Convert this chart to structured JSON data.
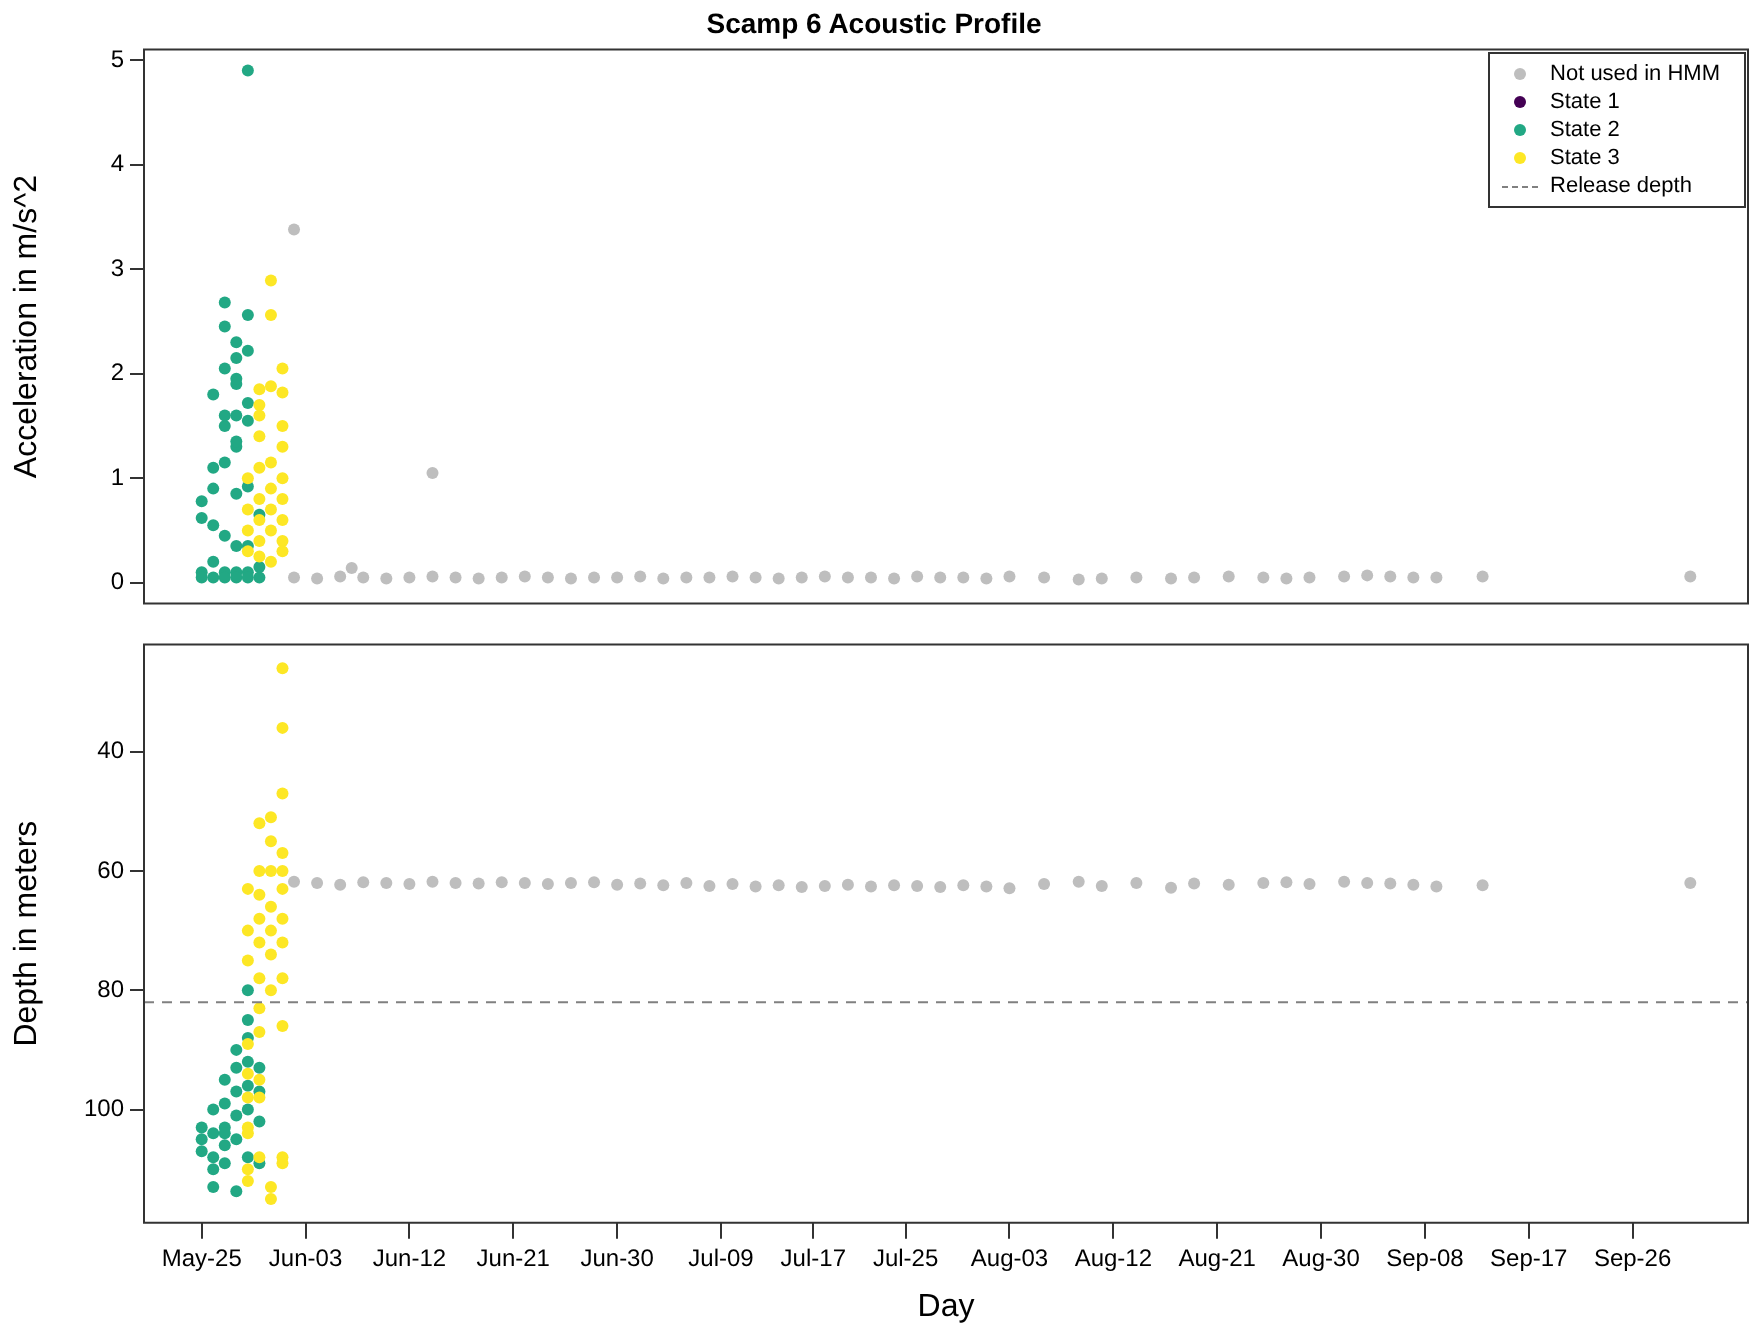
{
  "chart_data": [
    {
      "type": "scatter",
      "title": "Scamp 6 Acoustic Profile",
      "ylabel": "Acceleration in m/s^2",
      "marker": "circle",
      "legend": "top right",
      "tick_labels": "y",
      "xlim": [
        "--05-20",
        "--10-06"
      ],
      "ylim": [
        -0.2,
        5.1
      ],
      "yticks": [
        0,
        1,
        2,
        3,
        4,
        5
      ],
      "series": [
        {
          "name": "Not used in HMM",
          "color": "#bebebe",
          "x": [
            "--06-02",
            "--06-04",
            "--06-06",
            "--06-08",
            "--06-10",
            "--06-12",
            "--06-14",
            "--06-16",
            "--06-18",
            "--06-20",
            "--06-22",
            "--06-24",
            "--06-26",
            "--06-28",
            "--06-30",
            "--07-02",
            "--07-04",
            "--07-06",
            "--07-08",
            "--07-10",
            "--07-12",
            "--07-14",
            "--07-16",
            "--07-18",
            "--07-20",
            "--07-22",
            "--07-24",
            "--07-26",
            "--07-28",
            "--07-30",
            "--08-01",
            "--08-03",
            "--08-06",
            "--08-09",
            "--08-11",
            "--08-14",
            "--08-17",
            "--08-19",
            "--08-22",
            "--08-25",
            "--08-27",
            "--08-29",
            "--09-01",
            "--09-03",
            "--09-05",
            "--09-07",
            "--09-09",
            "--09-13",
            "--10-01",
            "--06-02",
            "--06-07",
            "--06-14"
          ],
          "values": [
            0.05,
            0.04,
            0.06,
            0.05,
            0.04,
            0.05,
            0.06,
            0.05,
            0.04,
            0.05,
            0.06,
            0.05,
            0.04,
            0.05,
            0.05,
            0.06,
            0.04,
            0.05,
            0.05,
            0.06,
            0.05,
            0.04,
            0.05,
            0.06,
            0.05,
            0.05,
            0.04,
            0.06,
            0.05,
            0.05,
            0.04,
            0.06,
            0.05,
            0.03,
            0.04,
            0.05,
            0.04,
            0.05,
            0.06,
            0.05,
            0.04,
            0.05,
            0.06,
            0.07,
            0.06,
            0.05,
            0.05,
            0.06,
            0.06,
            3.38,
            0.14,
            1.05
          ]
        },
        {
          "name": "State 1",
          "color": "#440154"
        },
        {
          "name": "State 2",
          "color": "#22a884",
          "x": [
            "--05-25",
            "--05-25",
            "--05-25",
            "--05-25",
            "--05-26",
            "--05-26",
            "--05-26",
            "--05-26",
            "--05-26",
            "--05-26",
            "--05-27",
            "--05-27",
            "--05-27",
            "--05-27",
            "--05-27",
            "--05-27",
            "--05-27",
            "--05-27",
            "--05-27",
            "--05-28",
            "--05-28",
            "--05-28",
            "--05-28",
            "--05-28",
            "--05-28",
            "--05-28",
            "--05-28",
            "--05-28",
            "--05-28",
            "--05-28",
            "--05-29",
            "--05-29",
            "--05-29",
            "--05-29",
            "--05-29",
            "--05-29",
            "--05-29",
            "--05-29",
            "--05-29",
            "--05-30",
            "--05-30",
            "--05-30"
          ],
          "values": [
            0.78,
            0.1,
            0.05,
            0.62,
            1.8,
            0.9,
            0.2,
            0.05,
            1.1,
            0.55,
            2.05,
            1.5,
            1.6,
            1.15,
            0.45,
            0.1,
            0.05,
            2.68,
            2.45,
            1.9,
            2.15,
            1.6,
            1.3,
            0.85,
            0.35,
            0.1,
            0.05,
            2.3,
            1.95,
            1.35,
            4.9,
            2.56,
            2.22,
            1.72,
            1.55,
            0.92,
            0.35,
            0.1,
            0.05,
            0.65,
            0.05,
            0.15
          ]
        },
        {
          "name": "State 3",
          "color": "#fde725",
          "x": [
            "--05-29",
            "--05-29",
            "--05-29",
            "--05-29",
            "--05-30",
            "--05-30",
            "--05-30",
            "--05-30",
            "--05-30",
            "--05-30",
            "--05-30",
            "--05-30",
            "--05-30",
            "--05-31",
            "--05-31",
            "--05-31",
            "--05-31",
            "--05-31",
            "--05-31",
            "--05-31",
            "--05-31",
            "--06-01",
            "--06-01",
            "--06-01",
            "--06-01",
            "--06-01",
            "--06-01",
            "--06-01",
            "--06-01",
            "--06-01"
          ],
          "values": [
            0.3,
            0.5,
            0.7,
            1.0,
            0.8,
            0.4,
            1.7,
            1.85,
            1.6,
            1.4,
            0.25,
            1.1,
            0.6,
            2.89,
            2.56,
            1.88,
            1.15,
            0.9,
            0.5,
            0.2,
            0.7,
            2.05,
            1.82,
            1.5,
            1.3,
            1.0,
            0.8,
            0.6,
            0.4,
            0.3
          ]
        }
      ]
    },
    {
      "type": "scatter",
      "xlabel": "Day",
      "ylabel": "Depth in meters",
      "marker": "circle",
      "xlim": [
        "--05-20",
        "--10-06"
      ],
      "ylim": [
        119,
        22
      ],
      "yticks": [
        40,
        60,
        80,
        100
      ],
      "xticks": [
        {
          "value": "--05-25",
          "label": "May-25"
        },
        {
          "value": "--06-03",
          "label": "Jun-03"
        },
        {
          "value": "--06-12",
          "label": "Jun-12"
        },
        {
          "value": "--06-21",
          "label": "Jun-21"
        },
        {
          "value": "--06-30",
          "label": "Jun-30"
        },
        {
          "value": "--07-09",
          "label": "Jul-09"
        },
        {
          "value": "--07-17",
          "label": "Jul-17"
        },
        {
          "value": "--07-25",
          "label": "Jul-25"
        },
        {
          "value": "--08-03",
          "label": "Aug-03"
        },
        {
          "value": "--08-12",
          "label": "Aug-12"
        },
        {
          "value": "--08-21",
          "label": "Aug-21"
        },
        {
          "value": "--08-30",
          "label": "Aug-30"
        },
        {
          "value": "--09-08",
          "label": "Sep-08"
        },
        {
          "value": "--09-17",
          "label": "Sep-17"
        },
        {
          "value": "--09-26",
          "label": "Sep-26"
        }
      ],
      "ref_lines": [
        {
          "axis": "y",
          "value": 82,
          "label": "Release depth",
          "color": "#808080",
          "line_style": "dashed"
        }
      ],
      "series": [
        {
          "color": "#bebebe",
          "x": [
            "--06-02",
            "--06-04",
            "--06-06",
            "--06-08",
            "--06-10",
            "--06-12",
            "--06-14",
            "--06-16",
            "--06-18",
            "--06-20",
            "--06-22",
            "--06-24",
            "--06-26",
            "--06-28",
            "--06-30",
            "--07-02",
            "--07-04",
            "--07-06",
            "--07-08",
            "--07-10",
            "--07-12",
            "--07-14",
            "--07-16",
            "--07-18",
            "--07-20",
            "--07-22",
            "--07-24",
            "--07-26",
            "--07-28",
            "--07-30",
            "--08-01",
            "--08-03",
            "--08-06",
            "--08-09",
            "--08-11",
            "--08-14",
            "--08-17",
            "--08-19",
            "--08-22",
            "--08-25",
            "--08-27",
            "--08-29",
            "--09-01",
            "--09-03",
            "--09-05",
            "--09-07",
            "--09-09",
            "--09-13",
            "--10-01"
          ],
          "values": [
            61.8,
            62,
            62.3,
            61.9,
            62,
            62.2,
            61.8,
            62,
            62.1,
            61.9,
            62,
            62.2,
            62,
            61.9,
            62.3,
            62.1,
            62.4,
            62,
            62.5,
            62.2,
            62.6,
            62.4,
            62.7,
            62.5,
            62.3,
            62.6,
            62.4,
            62.5,
            62.7,
            62.4,
            62.6,
            62.9,
            62.2,
            61.8,
            62.5,
            62,
            62.8,
            62.1,
            62.3,
            62,
            61.9,
            62.2,
            61.8,
            62,
            62.1,
            62.3,
            62.6,
            62.4,
            62
          ]
        },
        {
          "color": "#22a884",
          "x": [
            "--05-25",
            "--05-25",
            "--05-25",
            "--05-26",
            "--05-26",
            "--05-26",
            "--05-26",
            "--05-26",
            "--05-27",
            "--05-27",
            "--05-27",
            "--05-27",
            "--05-27",
            "--05-27",
            "--05-28",
            "--05-28",
            "--05-28",
            "--05-28",
            "--05-28",
            "--05-28",
            "--05-29",
            "--05-29",
            "--05-29",
            "--05-29",
            "--05-29",
            "--05-29",
            "--05-29",
            "--05-30",
            "--05-30",
            "--05-30",
            "--05-30"
          ],
          "values": [
            103,
            105,
            107,
            100,
            104,
            108,
            110,
            113,
            95,
            99,
            103,
            106,
            109,
            104,
            90,
            93,
            97,
            101,
            105,
            113.7,
            80,
            85,
            88,
            92,
            96,
            100,
            108,
            93,
            97,
            102,
            109
          ]
        },
        {
          "color": "#fde725",
          "x": [
            "--05-29",
            "--05-29",
            "--05-29",
            "--05-29",
            "--05-29",
            "--05-29",
            "--05-29",
            "--05-29",
            "--05-29",
            "--05-29",
            "--05-30",
            "--05-30",
            "--05-30",
            "--05-30",
            "--05-30",
            "--05-30",
            "--05-30",
            "--05-30",
            "--05-30",
            "--05-30",
            "--05-30",
            "--05-31",
            "--05-31",
            "--05-31",
            "--05-31",
            "--05-31",
            "--05-31",
            "--05-31",
            "--05-31",
            "--05-31",
            "--06-01",
            "--06-01",
            "--06-01",
            "--06-01",
            "--06-01",
            "--06-01",
            "--06-01",
            "--06-01",
            "--06-01",
            "--06-01",
            "--06-01",
            "--06-01"
          ],
          "values": [
            89,
            94,
            98,
            103,
            104,
            110,
            112,
            63,
            70,
            75,
            60,
            64,
            68,
            72,
            78,
            83,
            87,
            95,
            98,
            108,
            52,
            51,
            55,
            60,
            66,
            70,
            74,
            80,
            113,
            115,
            26,
            36,
            47,
            57,
            60,
            63,
            68,
            72,
            78,
            86,
            108,
            109
          ]
        }
      ]
    }
  ]
}
